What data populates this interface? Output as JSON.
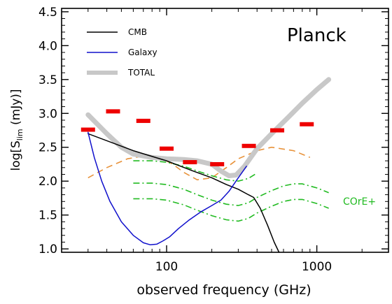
{
  "chart_data": {
    "type": "line",
    "xlabel": "observed frequency (GHz)",
    "ylabel_main": "log[S",
    "ylabel_sub": "lim",
    "ylabel_tail": " (mJy)]",
    "xscale": "log",
    "xlim": [
      20,
      3000
    ],
    "ylim": [
      0.95,
      4.55
    ],
    "x_ticks": [
      {
        "value": 100,
        "label": "100"
      },
      {
        "value": 1000,
        "label": "1000"
      }
    ],
    "y_ticks": [
      {
        "value": 1.0,
        "label": "1.0"
      },
      {
        "value": 1.5,
        "label": "1.5"
      },
      {
        "value": 2.0,
        "label": "2.0"
      },
      {
        "value": 2.5,
        "label": "2.5"
      },
      {
        "value": 3.0,
        "label": "3.0"
      },
      {
        "value": 3.5,
        "label": "3.5"
      },
      {
        "value": 4.0,
        "label": "4.0"
      },
      {
        "value": 4.5,
        "label": "4.5"
      }
    ],
    "annotations": {
      "planck": "Planck",
      "core": "COrE+"
    },
    "legend": {
      "position": "top-left",
      "entries": [
        {
          "label": "CMB",
          "color": "#000000"
        },
        {
          "label": "Galaxy",
          "color": "#1010cc"
        },
        {
          "label": "TOTAL",
          "color": "#c8c8c8"
        }
      ]
    },
    "series": [
      {
        "name": "CMB",
        "color": "#000000",
        "x": [
          30,
          60,
          100,
          150,
          200,
          250,
          300,
          350,
          380,
          420,
          470,
          520,
          560
        ],
        "y": [
          2.7,
          2.45,
          2.3,
          2.15,
          2.05,
          1.95,
          1.88,
          1.8,
          1.76,
          1.6,
          1.35,
          1.1,
          0.95
        ]
      },
      {
        "name": "Galaxy",
        "color": "#1010cc",
        "x": [
          30,
          33,
          37,
          42,
          50,
          60,
          70,
          78,
          86,
          95,
          105,
          120,
          140,
          170,
          200,
          230,
          260,
          300,
          340
        ],
        "y": [
          2.72,
          2.35,
          2.0,
          1.7,
          1.4,
          1.2,
          1.09,
          1.06,
          1.07,
          1.12,
          1.18,
          1.3,
          1.42,
          1.55,
          1.64,
          1.72,
          1.85,
          2.05,
          2.22
        ]
      },
      {
        "name": "TOTAL",
        "color": "#c8c8c8",
        "x": [
          30,
          40,
          50,
          60,
          80,
          100,
          130,
          160,
          200,
          230,
          260,
          290,
          330,
          400,
          500,
          650,
          800,
          1000,
          1200
        ],
        "y": [
          2.98,
          2.7,
          2.5,
          2.4,
          2.35,
          2.33,
          2.32,
          2.3,
          2.25,
          2.15,
          2.08,
          2.09,
          2.22,
          2.48,
          2.7,
          2.95,
          3.15,
          3.35,
          3.5
        ]
      }
    ],
    "planck_limits": [
      {
        "freq": 30,
        "value": 2.76
      },
      {
        "freq": 44,
        "value": 3.03
      },
      {
        "freq": 70,
        "value": 2.89
      },
      {
        "freq": 100,
        "value": 2.48
      },
      {
        "freq": 143,
        "value": 2.28
      },
      {
        "freq": 217,
        "value": 2.25
      },
      {
        "freq": 353,
        "value": 2.52
      },
      {
        "freq": 545,
        "value": 2.75
      },
      {
        "freq": 857,
        "value": 2.84
      }
    ],
    "core_curves": [
      {
        "style": "dashed",
        "color": "#e8923a",
        "x": [
          30,
          40,
          55,
          70,
          90,
          110,
          130,
          160,
          200,
          250,
          300,
          400,
          500,
          700,
          900
        ],
        "y": [
          2.05,
          2.2,
          2.33,
          2.37,
          2.35,
          2.25,
          2.13,
          2.02,
          2.05,
          2.2,
          2.33,
          2.45,
          2.5,
          2.45,
          2.35
        ]
      },
      {
        "style": "dashdot",
        "color": "#22bb22",
        "x": [
          60,
          80,
          100,
          130,
          160,
          200,
          250,
          300,
          350,
          400
        ],
        "y": [
          2.3,
          2.3,
          2.28,
          2.22,
          2.15,
          2.08,
          2.02,
          2.0,
          2.04,
          2.12
        ]
      },
      {
        "style": "dashdot",
        "color": "#22bb22",
        "x": [
          60,
          80,
          100,
          130,
          160,
          200,
          250,
          300,
          350,
          400,
          500,
          600,
          700,
          800,
          1000,
          1200
        ],
        "y": [
          1.97,
          1.97,
          1.95,
          1.88,
          1.8,
          1.72,
          1.66,
          1.64,
          1.68,
          1.76,
          1.86,
          1.93,
          1.96,
          1.96,
          1.9,
          1.83
        ]
      },
      {
        "style": "dashdot",
        "color": "#22bb22",
        "x": [
          60,
          80,
          100,
          130,
          160,
          200,
          250,
          300,
          350,
          400,
          500,
          600,
          700,
          800,
          1000,
          1200
        ],
        "y": [
          1.74,
          1.74,
          1.72,
          1.65,
          1.57,
          1.49,
          1.43,
          1.41,
          1.45,
          1.53,
          1.63,
          1.7,
          1.73,
          1.73,
          1.67,
          1.6
        ]
      }
    ]
  }
}
